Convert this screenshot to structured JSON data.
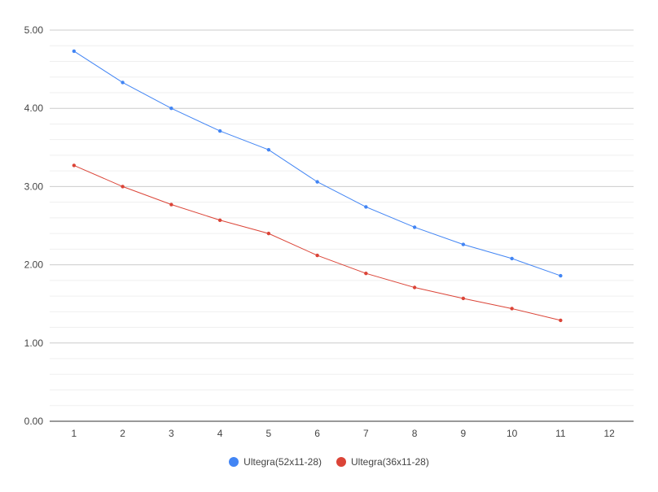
{
  "chart_data": {
    "type": "line",
    "title": "",
    "xlabel": "",
    "ylabel": "",
    "x": [
      1,
      2,
      3,
      4,
      5,
      6,
      7,
      8,
      9,
      10,
      11
    ],
    "xlim": [
      0.5,
      12.5
    ],
    "x_ticks": [
      "1",
      "2",
      "3",
      "4",
      "5",
      "6",
      "7",
      "8",
      "9",
      "10",
      "11",
      "12"
    ],
    "ylim": [
      0,
      5
    ],
    "y_ticks": [
      "0.00",
      "1.00",
      "2.00",
      "3.00",
      "4.00",
      "5.00"
    ],
    "grid": true,
    "legend_position": "bottom",
    "series": [
      {
        "name": "Ultegra(52x11-28)",
        "color": "#4285f4",
        "values": [
          4.73,
          4.33,
          4.0,
          3.71,
          3.47,
          3.06,
          2.74,
          2.48,
          2.26,
          2.08,
          1.86
        ]
      },
      {
        "name": "Ultegra(36x11-28)",
        "color": "#db4437",
        "values": [
          3.27,
          3.0,
          2.77,
          2.57,
          2.4,
          2.12,
          1.89,
          1.71,
          1.57,
          1.44,
          1.29
        ]
      }
    ]
  }
}
